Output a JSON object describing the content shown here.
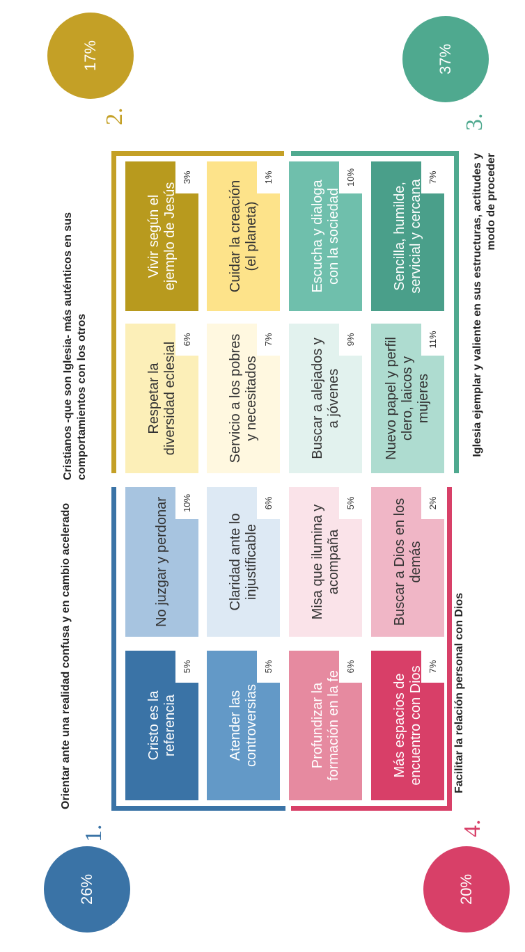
{
  "quadrants": [
    {
      "number": "1.",
      "title": "Orientar ante una realidad confusa y en cambio acelerado",
      "percent": "26%",
      "color": "#3a73a6",
      "cells": [
        {
          "label": "Cristo es la referencia",
          "percent": "5%",
          "bg": "#3a73a6",
          "fg": "#ffffff"
        },
        {
          "label": "No juzgar y perdonar",
          "percent": "10%",
          "bg": "#a7c4e0",
          "fg": "#333333"
        },
        {
          "label": "Atender las controversias",
          "percent": "5%",
          "bg": "#6399c7",
          "fg": "#ffffff"
        },
        {
          "label": "Claridad ante lo injustificable",
          "percent": "6%",
          "bg": "#dde9f4",
          "fg": "#333333"
        }
      ]
    },
    {
      "number": "2.",
      "title": "Cristianos -que son Iglesia- más auténticos en sus comportamientos con los otros",
      "percent": "17%",
      "color": "#c4a026",
      "cells": [
        {
          "label": "Respetar la diversidad eclesial",
          "percent": "6%",
          "bg": "#fcefb8",
          "fg": "#333333"
        },
        {
          "label": "Vivir según el ejemplo de Jesús",
          "percent": "3%",
          "bg": "#b89a1e",
          "fg": "#ffffff"
        },
        {
          "label": "Servicio a los pobres y necesitados",
          "percent": "7%",
          "bg": "#fff8e0",
          "fg": "#333333"
        },
        {
          "label": "Cuidar la creación (el planeta)",
          "percent": "1%",
          "bg": "#fde38a",
          "fg": "#333333"
        }
      ]
    },
    {
      "number": "3.",
      "title": "Iglesia ejemplar y valiente en sus estructuras, actitudes y modo de proceder",
      "percent": "37%",
      "color": "#4fa98f",
      "cells": [
        {
          "label": "Buscar a alejados y a jóvenes",
          "percent": "9%",
          "bg": "#e2f2ee",
          "fg": "#333333"
        },
        {
          "label": "Escucha y dialoga con la sociedad",
          "percent": "10%",
          "bg": "#6fbfac",
          "fg": "#ffffff"
        },
        {
          "label": "Nuevo papel y perfil clero, laicos y mujeres",
          "percent": "11%",
          "bg": "#aedcd0",
          "fg": "#333333"
        },
        {
          "label": "Sencilla, humilde, servicial y cercana",
          "percent": "7%",
          "bg": "#4a9f8a",
          "fg": "#ffffff"
        }
      ]
    },
    {
      "number": "4.",
      "title": "Facilitar la relación personal con Dios",
      "percent": "20%",
      "color": "#d84068",
      "cells": [
        {
          "label": "Profundizar la formación en la fe",
          "percent": "6%",
          "bg": "#e68aa0",
          "fg": "#ffffff"
        },
        {
          "label": "Misa que ilumina y acompaña",
          "percent": "5%",
          "bg": "#fae3e9",
          "fg": "#333333"
        },
        {
          "label": "Más espacios de encuentro con Dios",
          "percent": "7%",
          "bg": "#d83f68",
          "fg": "#ffffff"
        },
        {
          "label": "Buscar a Dios en los demás",
          "percent": "2%",
          "bg": "#f0b6c6",
          "fg": "#333333"
        }
      ]
    }
  ]
}
